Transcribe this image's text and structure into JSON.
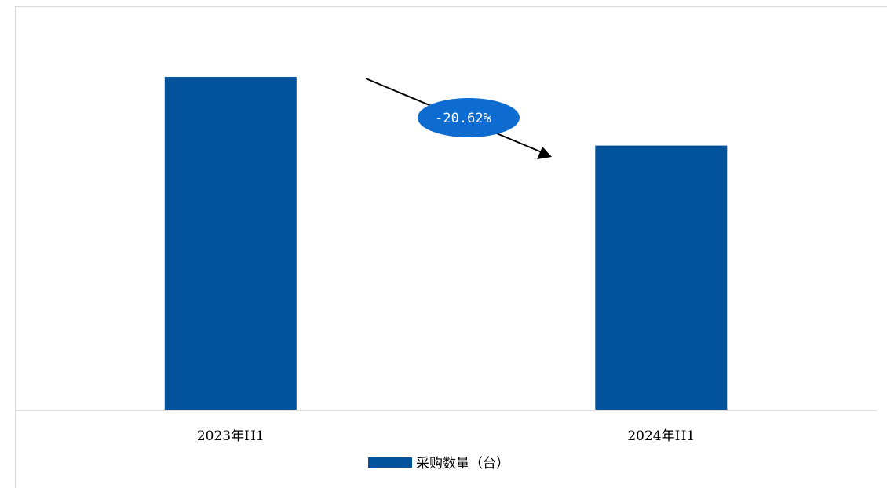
{
  "chart_data": {
    "type": "bar",
    "categories": [
      "2023年H1",
      "2024年H1"
    ],
    "series": [
      {
        "name": "采购数量（台）",
        "values": [
          100,
          79.38
        ]
      }
    ],
    "ylim": [
      0,
      100
    ],
    "grid": false,
    "legend_position": "bottom",
    "bar_color": "#02529C",
    "annotation": {
      "text": "-20.62%",
      "fill": "#0E6BD0",
      "kind": "decrease-arrow"
    }
  }
}
